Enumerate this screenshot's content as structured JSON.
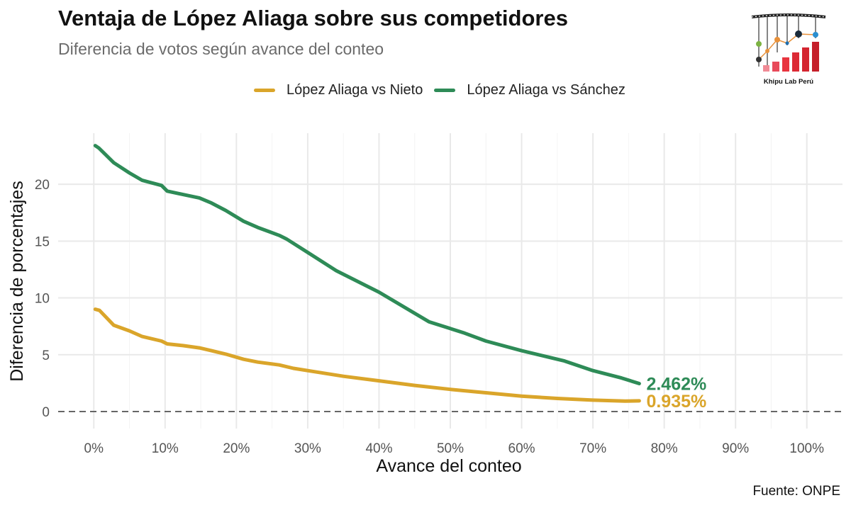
{
  "header": {
    "title": "Ventaja de López Aliaga sobre sus competidores",
    "subtitle": "Diferencia de votos según avance del conteo"
  },
  "logo": {
    "text": "Khipu Lab Perú"
  },
  "source": "Fuente: ONPE",
  "colors": {
    "nieto": "#DAA52A",
    "sanchez": "#2E8B57",
    "grid": "#e9e9e9",
    "zero_line": "#666666"
  },
  "chart_data": {
    "type": "line",
    "title": "Ventaja de López Aliaga sobre sus competidores",
    "subtitle": "Diferencia de votos según avance del conteo",
    "xlabel": "Avance del conteo",
    "ylabel": "Diferencia de porcentajes",
    "xlim": [
      -5,
      105
    ],
    "ylim": [
      -1.5,
      24.5
    ],
    "x_ticks": [
      0,
      10,
      20,
      30,
      40,
      50,
      60,
      70,
      80,
      90,
      100
    ],
    "x_tick_labels": [
      "0%",
      "10%",
      "20%",
      "30%",
      "40%",
      "50%",
      "60%",
      "70%",
      "80%",
      "90%",
      "100%"
    ],
    "y_ticks": [
      0,
      5,
      10,
      15,
      20
    ],
    "y_tick_labels": [
      "0",
      "5",
      "10",
      "15",
      "20"
    ],
    "grid": true,
    "reference_line": {
      "y": 0,
      "style": "dashed"
    },
    "legend_position": "top",
    "series": [
      {
        "name": "López Aliaga vs Nieto",
        "color": "#DAA52A",
        "end_label": "0.935%",
        "x": [
          0.2,
          0.8,
          2.8,
          5.0,
          6.8,
          9.5,
          10.3,
          12.5,
          14.8,
          16.5,
          18.5,
          21.0,
          23.0,
          26.0,
          28.0,
          31.0,
          35.0,
          40.0,
          45.0,
          50.0,
          55.0,
          60.0,
          65.0,
          70.0,
          74.5,
          76.5
        ],
        "values": [
          9.0,
          8.9,
          7.6,
          7.1,
          6.6,
          6.2,
          5.95,
          5.8,
          5.6,
          5.35,
          5.05,
          4.6,
          4.35,
          4.1,
          3.8,
          3.5,
          3.1,
          2.7,
          2.3,
          1.95,
          1.65,
          1.35,
          1.15,
          1.0,
          0.92,
          0.935
        ]
      },
      {
        "name": "López Aliaga vs Sánchez",
        "color": "#2E8B57",
        "end_label": "2.462%",
        "x": [
          0.2,
          0.7,
          2.8,
          5.0,
          6.8,
          9.5,
          10.3,
          12.5,
          14.8,
          16.5,
          18.5,
          21.0,
          23.0,
          26.0,
          27.0,
          30.0,
          34.0,
          40.0,
          47.0,
          52.0,
          55.0,
          60.0,
          66.0,
          70.0,
          74.0,
          76.5
        ],
        "values": [
          23.4,
          23.2,
          21.9,
          21.0,
          20.35,
          19.9,
          19.4,
          19.1,
          18.8,
          18.35,
          17.7,
          16.75,
          16.2,
          15.5,
          15.2,
          14.0,
          12.4,
          10.5,
          7.9,
          6.9,
          6.2,
          5.35,
          4.45,
          3.6,
          2.95,
          2.462
        ]
      }
    ]
  }
}
